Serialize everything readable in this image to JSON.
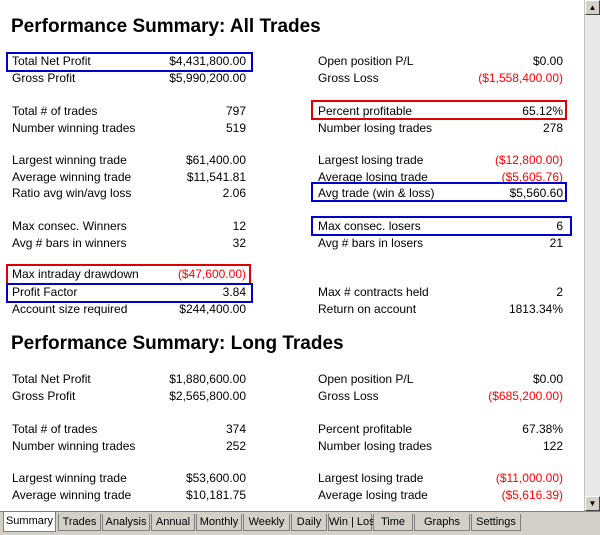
{
  "all_trades": {
    "title": "Performance Summary:  All Trades",
    "rows": [
      {
        "left_label": "Total Net Profit",
        "left_value": "$4,431,800.00",
        "right_label": "Open position P/L",
        "right_value": "$0.00"
      },
      {
        "left_label": "Gross Profit",
        "left_value": "$5,990,200.00",
        "right_label": "Gross Loss",
        "right_value": "($1,558,400.00)"
      },
      {
        "left_label": "Total # of trades",
        "left_value": "797",
        "right_label": "Percent profitable",
        "right_value": "65.12%"
      },
      {
        "left_label": "Number winning trades",
        "left_value": "519",
        "right_label": "Number losing trades",
        "right_value": "278"
      },
      {
        "left_label": "Largest winning trade",
        "left_value": "$61,400.00",
        "right_label": "Largest losing trade",
        "right_value": "($12,800.00)"
      },
      {
        "left_label": "Average winning trade",
        "left_value": "$11,541.81",
        "right_label": "Average losing trade",
        "right_value": "($5,605.76)"
      },
      {
        "left_label": "Ratio avg win/avg loss",
        "left_value": "2.06",
        "right_label": "Avg trade (win & loss)",
        "right_value": "$5,560.60"
      },
      {
        "left_label": "Max consec. Winners",
        "left_value": "12",
        "right_label": "Max consec. losers",
        "right_value": "6"
      },
      {
        "left_label": "Avg # bars in winners",
        "left_value": "32",
        "right_label": "Avg # bars in losers",
        "right_value": "21"
      },
      {
        "left_label": "Max intraday drawdown",
        "left_value": "($47,600.00)",
        "right_label": "",
        "right_value": ""
      },
      {
        "left_label": "Profit Factor",
        "left_value": "3.84",
        "right_label": "Max # contracts held",
        "right_value": "2"
      },
      {
        "left_label": "Account size required",
        "left_value": "$244,400.00",
        "right_label": "Return on account",
        "right_value": "1813.34%"
      }
    ]
  },
  "long_trades": {
    "title": "Performance Summary:  Long Trades",
    "rows": [
      {
        "left_label": "Total Net Profit",
        "left_value": "$1,880,600.00",
        "right_label": "Open position P/L",
        "right_value": "$0.00"
      },
      {
        "left_label": "Gross Profit",
        "left_value": "$2,565,800.00",
        "right_label": "Gross Loss",
        "right_value": "($685,200.00)"
      },
      {
        "left_label": "Total # of trades",
        "left_value": "374",
        "right_label": "Percent profitable",
        "right_value": "67.38%"
      },
      {
        "left_label": "Number winning trades",
        "left_value": "252",
        "right_label": "Number losing trades",
        "right_value": "122"
      },
      {
        "left_label": "Largest winning trade",
        "left_value": "$53,600.00",
        "right_label": "Largest losing trade",
        "right_value": "($11,000.00)"
      },
      {
        "left_label": "Average winning trade",
        "left_value": "$10,181.75",
        "right_label": "Average losing trade",
        "right_value": "($5,616.39)"
      }
    ]
  },
  "colors": {
    "negative": "#ff0000",
    "highlight_blue": "#0000d0",
    "highlight_red": "#e00000",
    "tab_bg": "#d4d0c8"
  },
  "tabs": [
    "Summary",
    "Trades",
    "Analysis",
    "Annual",
    "Monthly",
    "Weekly",
    "Daily",
    "Win | Loss",
    "Time",
    "Graphs",
    "Settings"
  ],
  "active_tab": "Summary",
  "scrollbar": {
    "up_icon": "scroll-up-arrow-icon",
    "down_icon": "scroll-down-arrow-icon"
  }
}
